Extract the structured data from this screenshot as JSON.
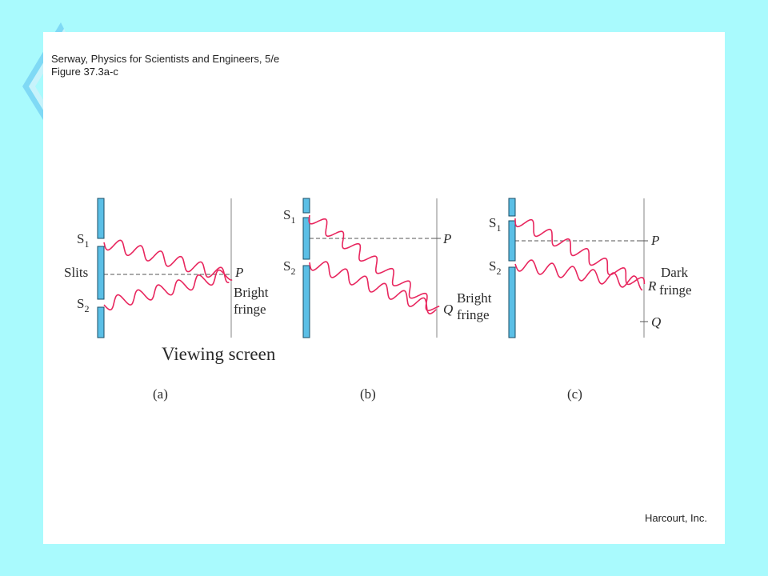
{
  "header": {
    "line1": "Serway, Physics for Scientists and Engineers, 5/e",
    "line2": "Figure 37.3a-c"
  },
  "credit": "Harcourt, Inc.",
  "colors": {
    "background": "#a9fafd",
    "panel": "#ffffff",
    "slit_barrier": "#5bbfe6",
    "wave": "#e8265e",
    "deco": "#7fd9f5"
  },
  "panels": {
    "a": {
      "caption": "(a)",
      "s1": "S",
      "s1_sub": "1",
      "s2": "S",
      "s2_sub": "2",
      "slits_label": "Slits",
      "point_p": "P",
      "fringe_line1": "Bright",
      "fringe_line2": "fringe",
      "screen_label": "Viewing screen"
    },
    "b": {
      "caption": "(b)",
      "s1": "S",
      "s1_sub": "1",
      "s2": "S",
      "s2_sub": "2",
      "point_p": "P",
      "point_q": "Q",
      "fringe_line1": "Bright",
      "fringe_line2": "fringe"
    },
    "c": {
      "caption": "(c)",
      "s1": "S",
      "s1_sub": "1",
      "s2": "S",
      "s2_sub": "2",
      "point_p": "P",
      "point_r": "R",
      "point_q": "Q",
      "fringe_line1": "Dark",
      "fringe_line2": "fringe"
    }
  }
}
